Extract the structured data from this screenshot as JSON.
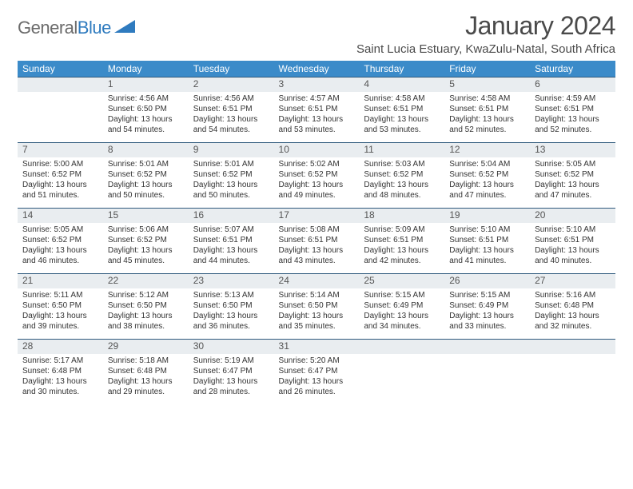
{
  "logo": {
    "word1": "General",
    "word2": "Blue"
  },
  "title": "January 2024",
  "location": "Saint Lucia Estuary, KwaZulu-Natal, South Africa",
  "header_bg": "#3b8bc9",
  "daynum_bg": "#e9edf0",
  "daynum_border": "#2f5a7d",
  "weekdays": [
    "Sunday",
    "Monday",
    "Tuesday",
    "Wednesday",
    "Thursday",
    "Friday",
    "Saturday"
  ],
  "weeks": [
    [
      null,
      {
        "n": "1",
        "sr": "4:56 AM",
        "ss": "6:50 PM",
        "dl": "13 hours and 54 minutes."
      },
      {
        "n": "2",
        "sr": "4:56 AM",
        "ss": "6:51 PM",
        "dl": "13 hours and 54 minutes."
      },
      {
        "n": "3",
        "sr": "4:57 AM",
        "ss": "6:51 PM",
        "dl": "13 hours and 53 minutes."
      },
      {
        "n": "4",
        "sr": "4:58 AM",
        "ss": "6:51 PM",
        "dl": "13 hours and 53 minutes."
      },
      {
        "n": "5",
        "sr": "4:58 AM",
        "ss": "6:51 PM",
        "dl": "13 hours and 52 minutes."
      },
      {
        "n": "6",
        "sr": "4:59 AM",
        "ss": "6:51 PM",
        "dl": "13 hours and 52 minutes."
      }
    ],
    [
      {
        "n": "7",
        "sr": "5:00 AM",
        "ss": "6:52 PM",
        "dl": "13 hours and 51 minutes."
      },
      {
        "n": "8",
        "sr": "5:01 AM",
        "ss": "6:52 PM",
        "dl": "13 hours and 50 minutes."
      },
      {
        "n": "9",
        "sr": "5:01 AM",
        "ss": "6:52 PM",
        "dl": "13 hours and 50 minutes."
      },
      {
        "n": "10",
        "sr": "5:02 AM",
        "ss": "6:52 PM",
        "dl": "13 hours and 49 minutes."
      },
      {
        "n": "11",
        "sr": "5:03 AM",
        "ss": "6:52 PM",
        "dl": "13 hours and 48 minutes."
      },
      {
        "n": "12",
        "sr": "5:04 AM",
        "ss": "6:52 PM",
        "dl": "13 hours and 47 minutes."
      },
      {
        "n": "13",
        "sr": "5:05 AM",
        "ss": "6:52 PM",
        "dl": "13 hours and 47 minutes."
      }
    ],
    [
      {
        "n": "14",
        "sr": "5:05 AM",
        "ss": "6:52 PM",
        "dl": "13 hours and 46 minutes."
      },
      {
        "n": "15",
        "sr": "5:06 AM",
        "ss": "6:52 PM",
        "dl": "13 hours and 45 minutes."
      },
      {
        "n": "16",
        "sr": "5:07 AM",
        "ss": "6:51 PM",
        "dl": "13 hours and 44 minutes."
      },
      {
        "n": "17",
        "sr": "5:08 AM",
        "ss": "6:51 PM",
        "dl": "13 hours and 43 minutes."
      },
      {
        "n": "18",
        "sr": "5:09 AM",
        "ss": "6:51 PM",
        "dl": "13 hours and 42 minutes."
      },
      {
        "n": "19",
        "sr": "5:10 AM",
        "ss": "6:51 PM",
        "dl": "13 hours and 41 minutes."
      },
      {
        "n": "20",
        "sr": "5:10 AM",
        "ss": "6:51 PM",
        "dl": "13 hours and 40 minutes."
      }
    ],
    [
      {
        "n": "21",
        "sr": "5:11 AM",
        "ss": "6:50 PM",
        "dl": "13 hours and 39 minutes."
      },
      {
        "n": "22",
        "sr": "5:12 AM",
        "ss": "6:50 PM",
        "dl": "13 hours and 38 minutes."
      },
      {
        "n": "23",
        "sr": "5:13 AM",
        "ss": "6:50 PM",
        "dl": "13 hours and 36 minutes."
      },
      {
        "n": "24",
        "sr": "5:14 AM",
        "ss": "6:50 PM",
        "dl": "13 hours and 35 minutes."
      },
      {
        "n": "25",
        "sr": "5:15 AM",
        "ss": "6:49 PM",
        "dl": "13 hours and 34 minutes."
      },
      {
        "n": "26",
        "sr": "5:15 AM",
        "ss": "6:49 PM",
        "dl": "13 hours and 33 minutes."
      },
      {
        "n": "27",
        "sr": "5:16 AM",
        "ss": "6:48 PM",
        "dl": "13 hours and 32 minutes."
      }
    ],
    [
      {
        "n": "28",
        "sr": "5:17 AM",
        "ss": "6:48 PM",
        "dl": "13 hours and 30 minutes."
      },
      {
        "n": "29",
        "sr": "5:18 AM",
        "ss": "6:48 PM",
        "dl": "13 hours and 29 minutes."
      },
      {
        "n": "30",
        "sr": "5:19 AM",
        "ss": "6:47 PM",
        "dl": "13 hours and 28 minutes."
      },
      {
        "n": "31",
        "sr": "5:20 AM",
        "ss": "6:47 PM",
        "dl": "13 hours and 26 minutes."
      },
      null,
      null,
      null
    ]
  ],
  "labels": {
    "sunrise": "Sunrise:",
    "sunset": "Sunset:",
    "daylight": "Daylight:"
  }
}
